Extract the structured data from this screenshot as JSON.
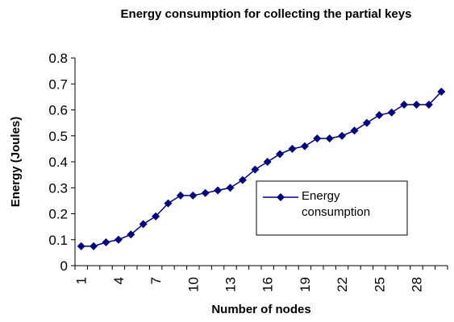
{
  "chart_data": {
    "type": "line",
    "title": "Energy consumption for collecting the partial keys",
    "x_label": "Number of nodes",
    "y_label": "Energy (Joules)",
    "categories": [
      1,
      null,
      null,
      4,
      null,
      null,
      7,
      null,
      null,
      10,
      null,
      null,
      13,
      null,
      null,
      16,
      null,
      null,
      19,
      null,
      null,
      22,
      null,
      null,
      25,
      null,
      null,
      28,
      null,
      null
    ],
    "series": [
      {
        "name": "Energy consumption",
        "color": "#000080",
        "values": [
          0.075,
          0.075,
          0.09,
          0.1,
          0.12,
          0.16,
          0.19,
          0.24,
          0.27,
          0.27,
          0.28,
          0.29,
          0.3,
          0.33,
          0.37,
          0.4,
          0.43,
          0.45,
          0.46,
          0.49,
          0.49,
          0.5,
          0.52,
          0.55,
          0.58,
          0.59,
          0.62,
          0.62,
          0.62,
          0.67
        ]
      }
    ],
    "ylim": [
      0,
      0.8
    ],
    "yticks": [
      0,
      0.1,
      0.2,
      0.3,
      0.4,
      0.5,
      0.6,
      0.7,
      0.8
    ],
    "grid": false,
    "legend": "center-right"
  }
}
